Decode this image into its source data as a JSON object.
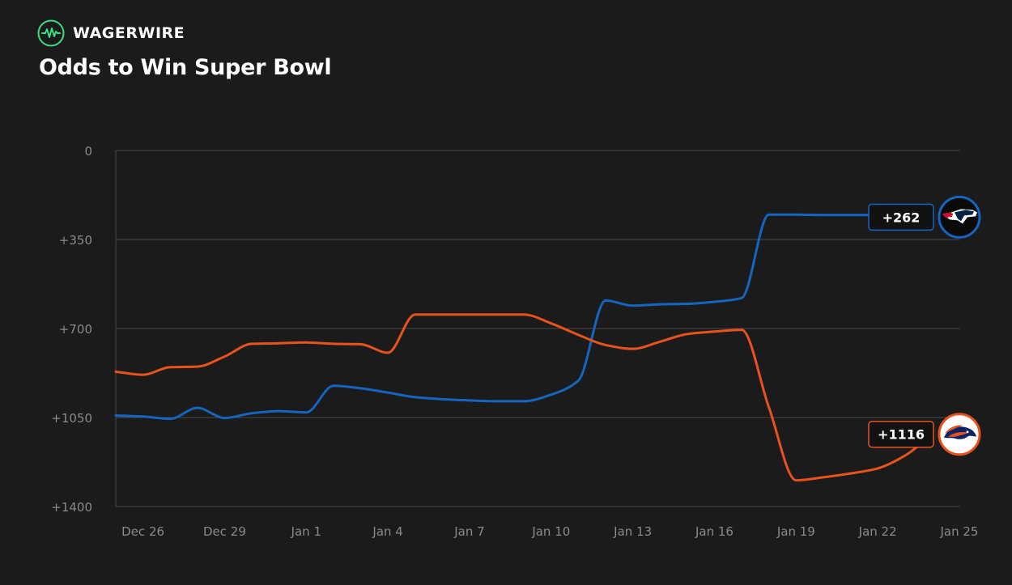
{
  "brand": {
    "name": "WAGERWIRE",
    "accent": "#3ddc84"
  },
  "header": {
    "title": "Odds to Win Super Bowl"
  },
  "colors": {
    "background": "#1b1b1b",
    "grid": "#4a4a4a",
    "tick_text": "#8a8a8a",
    "patriots": "#1565c0",
    "broncos": "#e8521c"
  },
  "chart_data": {
    "type": "line",
    "title": "Odds to Win Super Bowl",
    "xlabel": "",
    "ylabel": "",
    "x_ticks": [
      "Dec 26",
      "Dec 29",
      "Jan 1",
      "Jan 4",
      "Jan 7",
      "Jan 10",
      "Jan 13",
      "Jan 16",
      "Jan 19",
      "Jan 22",
      "Jan 25"
    ],
    "x_range_days": [
      0,
      31
    ],
    "y_ticks": [
      "0",
      "+350",
      "+700",
      "+1050",
      "+1400"
    ],
    "ylim": [
      0,
      1400
    ],
    "y_inverted": true,
    "grid": true,
    "series": [
      {
        "team": "patriots",
        "color": "#1565c0",
        "end_label": "+262",
        "points": [
          [
            "Dec 25",
            1042
          ],
          [
            "Dec 26",
            1046
          ],
          [
            "Dec 27",
            1055
          ],
          [
            "Dec 28",
            1012
          ],
          [
            "Dec 29",
            1052
          ],
          [
            "Dec 30",
            1033
          ],
          [
            "Dec 31",
            1025
          ],
          [
            "Jan 1",
            1030
          ],
          [
            "Jan 2",
            925
          ],
          [
            "Jan 3",
            935
          ],
          [
            "Jan 4",
            952
          ],
          [
            "Jan 5",
            970
          ],
          [
            "Jan 6",
            978
          ],
          [
            "Jan 7",
            983
          ],
          [
            "Jan 8",
            986
          ],
          [
            "Jan 9",
            986
          ],
          [
            "Jan 10",
            960
          ],
          [
            "Jan 11",
            905
          ],
          [
            "Jan 12",
            590
          ],
          [
            "Jan 13",
            610
          ],
          [
            "Jan 14",
            605
          ],
          [
            "Jan 15",
            603
          ],
          [
            "Jan 16",
            595
          ],
          [
            "Jan 17",
            580
          ],
          [
            "Jan 18",
            252
          ],
          [
            "Jan 19",
            252
          ],
          [
            "Jan 20",
            254
          ],
          [
            "Jan 21",
            254
          ],
          [
            "Jan 22",
            254
          ],
          [
            "Jan 23",
            258
          ],
          [
            "Jan 24",
            262
          ]
        ]
      },
      {
        "team": "broncos",
        "color": "#e8521c",
        "end_label": "+1116",
        "points": [
          [
            "Dec 25",
            870
          ],
          [
            "Dec 26",
            882
          ],
          [
            "Dec 27",
            852
          ],
          [
            "Dec 28",
            850
          ],
          [
            "Dec 29",
            810
          ],
          [
            "Dec 30",
            760
          ],
          [
            "Dec 31",
            758
          ],
          [
            "Jan 1",
            755
          ],
          [
            "Jan 2",
            760
          ],
          [
            "Jan 3",
            762
          ],
          [
            "Jan 4",
            795
          ],
          [
            "Jan 5",
            645
          ],
          [
            "Jan 6",
            645
          ],
          [
            "Jan 7",
            645
          ],
          [
            "Jan 8",
            645
          ],
          [
            "Jan 9",
            645
          ],
          [
            "Jan 10",
            680
          ],
          [
            "Jan 11",
            725
          ],
          [
            "Jan 12",
            765
          ],
          [
            "Jan 13",
            780
          ],
          [
            "Jan 14",
            752
          ],
          [
            "Jan 15",
            722
          ],
          [
            "Jan 16",
            712
          ],
          [
            "Jan 17",
            705
          ],
          [
            "Jan 18",
            1010
          ],
          [
            "Jan 19",
            1297
          ],
          [
            "Jan 20",
            1285
          ],
          [
            "Jan 21",
            1270
          ],
          [
            "Jan 22",
            1250
          ],
          [
            "Jan 23",
            1200
          ],
          [
            "Jan 24",
            1116
          ]
        ]
      }
    ]
  }
}
